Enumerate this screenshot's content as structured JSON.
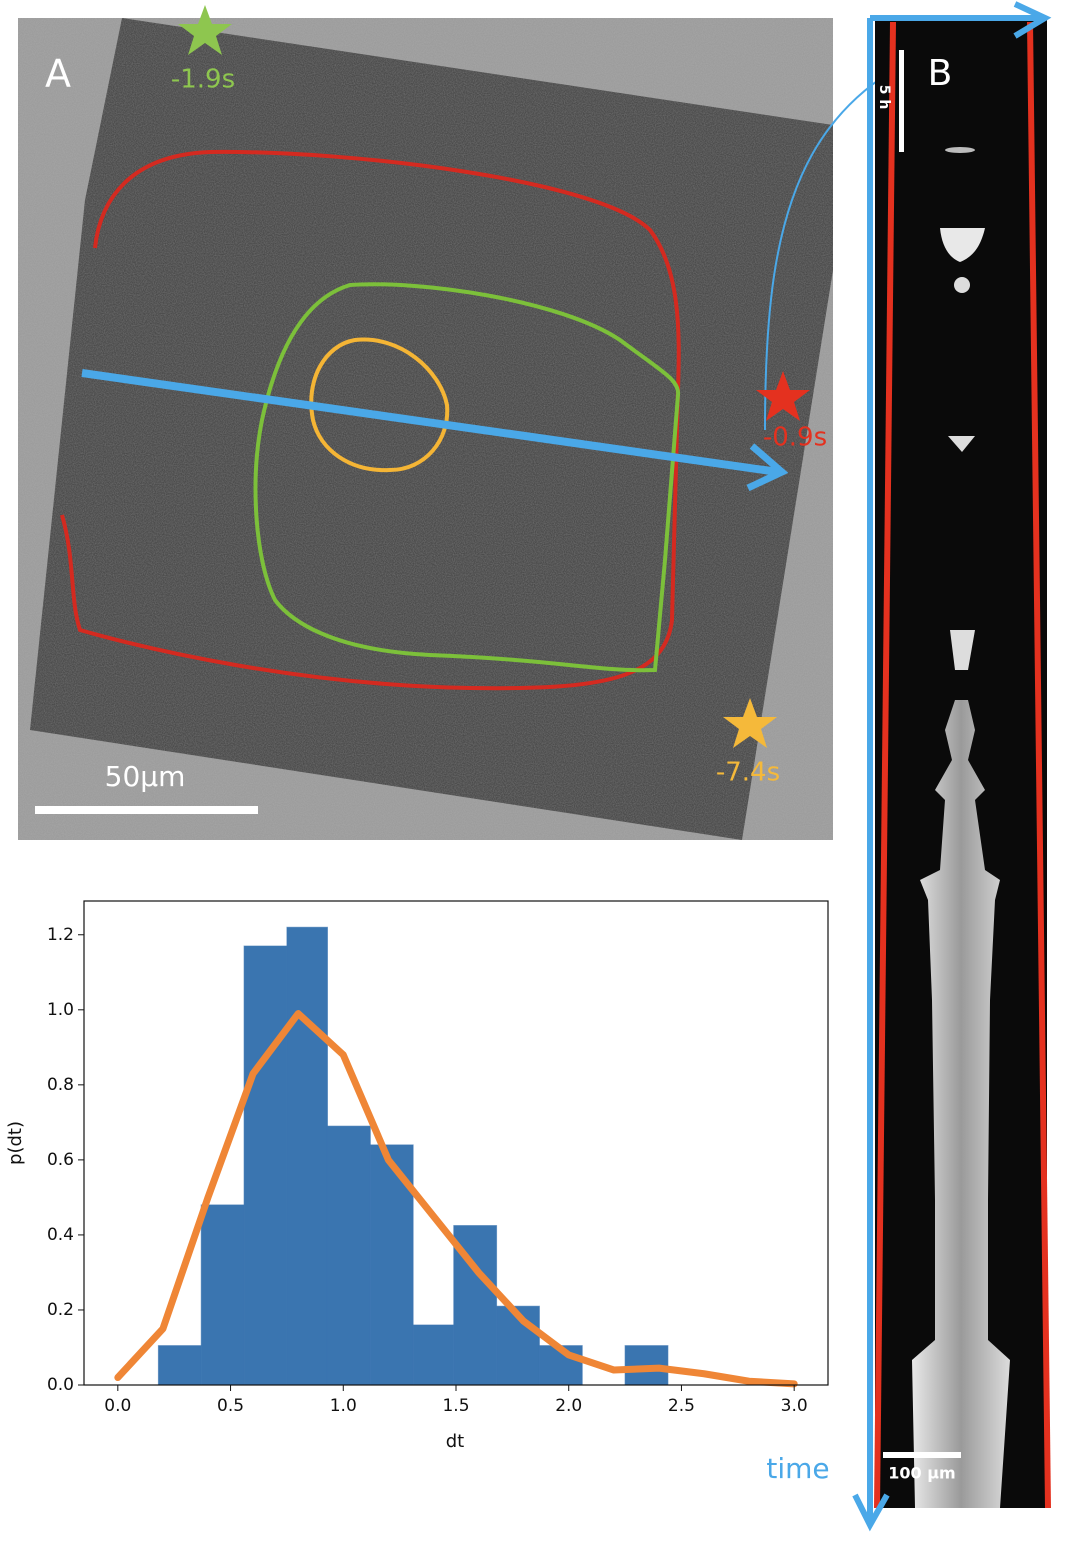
{
  "panels": {
    "a": {
      "label": "A",
      "markers": [
        "-1.9s",
        "-0.9s",
        "-7.4s"
      ],
      "scale_bar": "50μm"
    },
    "b": {
      "label": "B",
      "time_scale": "5 h",
      "scale_bar": "100 μm",
      "axis_label": "time"
    }
  },
  "chart_data": {
    "type": "histogram",
    "xlabel": "dt",
    "ylabel": "p(dt)",
    "bins": [
      0.18,
      0.37,
      0.56,
      0.75,
      0.93,
      1.12,
      1.31,
      1.49,
      1.68,
      1.87,
      2.06,
      2.25,
      2.44
    ],
    "values": [
      0.105,
      0.48,
      1.17,
      1.22,
      0.69,
      0.64,
      0.16,
      0.425,
      0.21,
      0.105,
      0,
      0.105
    ],
    "color": "#3a75b0",
    "curve": {
      "x": [
        0,
        0.2,
        0.4,
        0.6,
        0.8,
        1.0,
        1.2,
        1.4,
        1.6,
        1.8,
        2.0,
        2.2,
        2.4,
        2.6,
        2.8,
        3.0
      ],
      "values": [
        0.02,
        0.15,
        0.5,
        0.83,
        0.99,
        0.88,
        0.6,
        0.45,
        0.3,
        0.17,
        0.08,
        0.04,
        0.045,
        0.03,
        0.01,
        0.003
      ],
      "color": "#ef8636"
    },
    "xlim": [
      -0.15,
      3.15
    ],
    "xticks": [
      {
        "value": 0,
        "label": "0.0"
      },
      0.5,
      {
        "value": 1,
        "label": "1.0"
      },
      1.5,
      {
        "value": 2,
        "label": "2.0"
      },
      2.5,
      {
        "value": 3,
        "label": "3.0"
      }
    ],
    "ylim": [
      0,
      1.29
    ],
    "yticks": [
      {
        "value": 0,
        "label": "0.0"
      },
      0.2,
      0.4,
      0.6,
      0.8,
      {
        "value": 1,
        "label": "1.0"
      },
      1.2
    ]
  }
}
